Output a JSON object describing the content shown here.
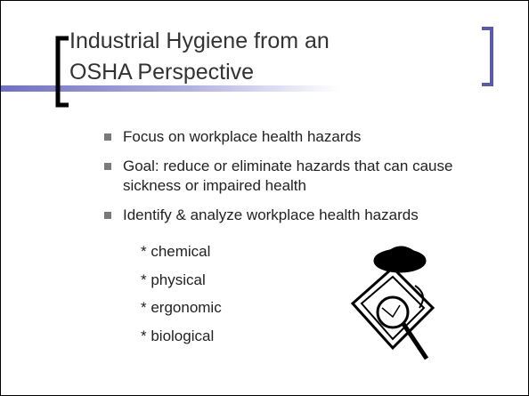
{
  "slide": {
    "title": "Industrial Hygiene from an OSHA Perspective",
    "bullets": [
      "Focus on workplace health hazards",
      "Goal: reduce or eliminate hazards that can cause sickness or impaired health",
      "Identify & analyze workplace health hazards"
    ],
    "sub_items": [
      "* chemical",
      "* physical",
      "* ergonomic",
      "* biological"
    ]
  }
}
